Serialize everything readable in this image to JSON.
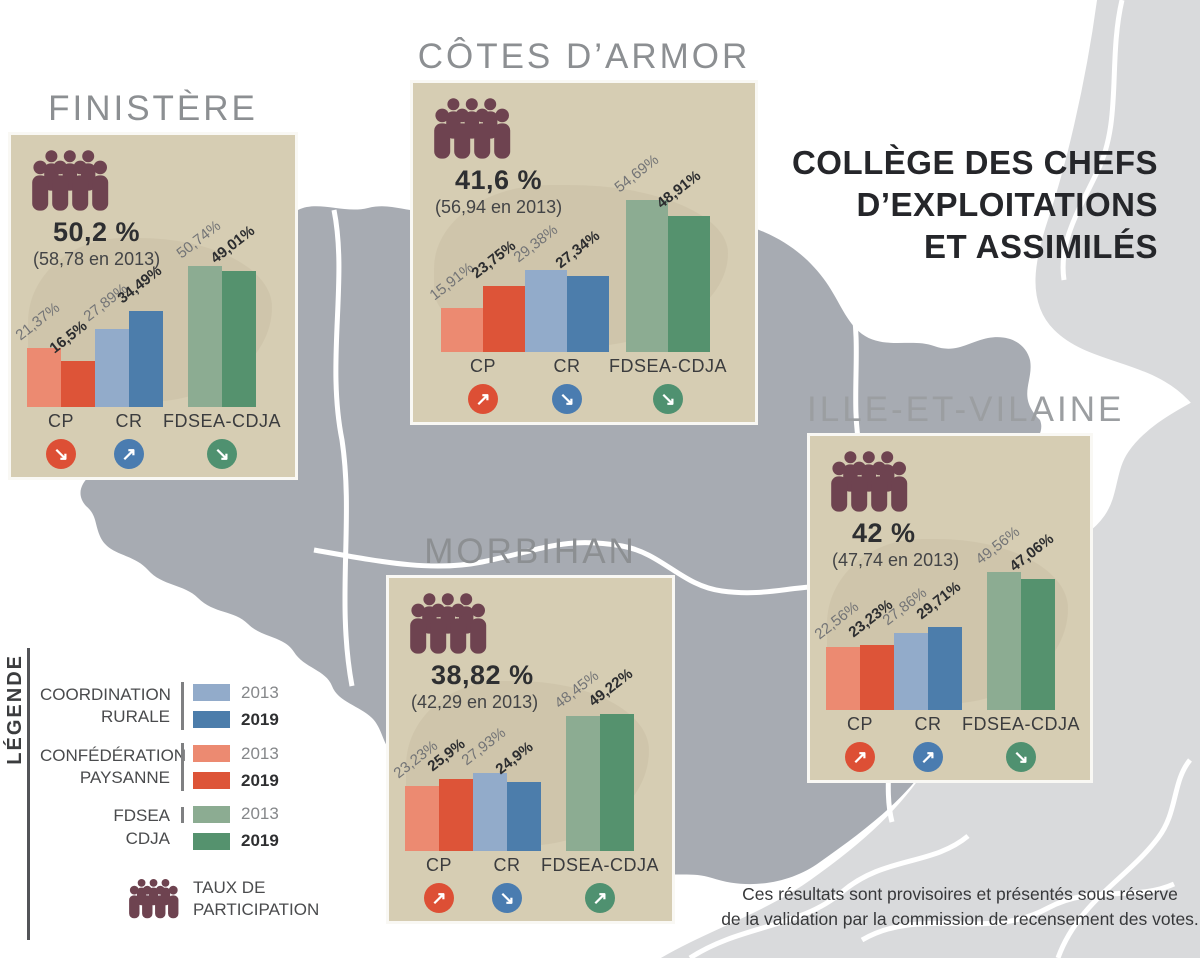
{
  "header": {
    "title_lines": [
      "COLLÈGE DES CHEFS",
      "D’EXPLOITATIONS",
      "ET ASSIMILÉS"
    ]
  },
  "footer": {
    "lines": [
      "Ces résultats sont provisoires et présentés sous réserve",
      "de la validation par la commission de recensement des votes."
    ]
  },
  "icons": {
    "trend_up": "↗",
    "trend_down": "↘",
    "participation": "people-group-icon"
  },
  "colors": {
    "sea": "#ffffff",
    "brittany": "#a7abb2",
    "neighbor_region": "#d9dadc",
    "panel": "#d6cdb3",
    "people_icon": "#6e4350",
    "cp_2013": "#ec8a71",
    "cp_2019": "#dd5438",
    "cr_2013": "#92abca",
    "cr_2019": "#4c7dab",
    "fdsea_2013": "#8cac92",
    "fdsea_2019": "#55926e",
    "trend_cp": "#dd4f35",
    "trend_cr": "#4a7cb0",
    "trend_fdsea": "#4f9170"
  },
  "legend": {
    "heading": "LÉGENDE",
    "entries": [
      {
        "name_lines": [
          "COORDINATION",
          "RURALE"
        ],
        "years": [
          {
            "label": "2013",
            "color": "#92abca"
          },
          {
            "label": "2019",
            "color": "#4c7dab"
          }
        ]
      },
      {
        "name_lines": [
          "CONFÉDÉRATION",
          "PAYSANNE"
        ],
        "years": [
          {
            "label": "2013",
            "color": "#ec8a71"
          },
          {
            "label": "2019",
            "color": "#dd5438"
          }
        ]
      },
      {
        "name_lines": [
          "FDSEA",
          "CDJA"
        ],
        "years": [
          {
            "label": "2013",
            "color": "#8cac92"
          },
          {
            "label": "2019",
            "color": "#55926e"
          }
        ]
      }
    ],
    "participation": {
      "lines": [
        "TAUX DE",
        "PARTICIPATION"
      ]
    }
  },
  "departments": [
    {
      "title": "FINISTÈRE",
      "participation": {
        "rate": "50,2 %",
        "previous": "(58,78 en 2013)"
      },
      "groups": [
        {
          "label": "CP",
          "trend": "down",
          "y2013": {
            "label": "21,37%",
            "value": 21.37
          },
          "y2019": {
            "label": "16,5%",
            "value": 16.5
          }
        },
        {
          "label": "CR",
          "trend": "up",
          "y2013": {
            "label": "27,89%",
            "value": 27.89
          },
          "y2019": {
            "label": "34,49%",
            "value": 34.49
          }
        },
        {
          "label": "FDSEA-CDJA",
          "trend": "down",
          "y2013": {
            "label": "50,74%",
            "value": 50.74
          },
          "y2019": {
            "label": "49,01%",
            "value": 49.01
          }
        }
      ]
    },
    {
      "title": "CÔTES D’ARMOR",
      "participation": {
        "rate": "41,6 %",
        "previous": "(56,94 en 2013)"
      },
      "groups": [
        {
          "label": "CP",
          "trend": "up",
          "y2013": {
            "label": "15,91%",
            "value": 15.91
          },
          "y2019": {
            "label": "23,75%",
            "value": 23.75
          }
        },
        {
          "label": "CR",
          "trend": "down",
          "y2013": {
            "label": "29,38%",
            "value": 29.38
          },
          "y2019": {
            "label": "27,34%",
            "value": 27.34
          }
        },
        {
          "label": "FDSEA-CDJA",
          "trend": "down",
          "y2013": {
            "label": "54,69%",
            "value": 54.69
          },
          "y2019": {
            "label": "48,91%",
            "value": 48.91
          }
        }
      ]
    },
    {
      "title": "MORBIHAN",
      "participation": {
        "rate": "38,82 %",
        "previous": "(42,29 en 2013)"
      },
      "groups": [
        {
          "label": "CP",
          "trend": "up",
          "y2013": {
            "label": "23,23%",
            "value": 23.23
          },
          "y2019": {
            "label": "25,9%",
            "value": 25.9
          }
        },
        {
          "label": "CR",
          "trend": "down",
          "y2013": {
            "label": "27,93%",
            "value": 27.93
          },
          "y2019": {
            "label": "24,9%",
            "value": 24.9
          }
        },
        {
          "label": "FDSEA-CDJA",
          "trend": "up",
          "y2013": {
            "label": "48,45%",
            "value": 48.45
          },
          "y2019": {
            "label": "49,22%",
            "value": 49.22
          }
        }
      ]
    },
    {
      "title": "ILLE-ET-VILAINE",
      "participation": {
        "rate": "42 %",
        "previous": "(47,74 en 2013)"
      },
      "groups": [
        {
          "label": "CP",
          "trend": "up",
          "y2013": {
            "label": "22,56%",
            "value": 22.56
          },
          "y2019": {
            "label": "23,23%",
            "value": 23.23
          }
        },
        {
          "label": "CR",
          "trend": "up",
          "y2013": {
            "label": "27,86%",
            "value": 27.86
          },
          "y2019": {
            "label": "29,71%",
            "value": 29.71
          }
        },
        {
          "label": "FDSEA-CDJA",
          "trend": "down",
          "y2013": {
            "label": "49,56%",
            "value": 49.56
          },
          "y2019": {
            "label": "47,06%",
            "value": 47.06
          }
        }
      ]
    }
  ],
  "chart_data": [
    {
      "type": "bar",
      "title": "FINISTÈRE",
      "participation_2019": 50.2,
      "participation_2013": 58.78,
      "categories": [
        "CP",
        "CR",
        "FDSEA-CDJA"
      ],
      "series": [
        {
          "name": "2013",
          "values": [
            21.37,
            27.89,
            50.74
          ]
        },
        {
          "name": "2019",
          "values": [
            16.5,
            34.49,
            49.01
          ]
        }
      ],
      "trends": [
        "down",
        "up",
        "down"
      ],
      "ylim": [
        0,
        60
      ],
      "unit": "%"
    },
    {
      "type": "bar",
      "title": "CÔTES D’ARMOR",
      "participation_2019": 41.6,
      "participation_2013": 56.94,
      "categories": [
        "CP",
        "CR",
        "FDSEA-CDJA"
      ],
      "series": [
        {
          "name": "2013",
          "values": [
            15.91,
            29.38,
            54.69
          ]
        },
        {
          "name": "2019",
          "values": [
            23.75,
            27.34,
            48.91
          ]
        }
      ],
      "trends": [
        "up",
        "down",
        "down"
      ],
      "ylim": [
        0,
        60
      ],
      "unit": "%"
    },
    {
      "type": "bar",
      "title": "MORBIHAN",
      "participation_2019": 38.82,
      "participation_2013": 42.29,
      "categories": [
        "CP",
        "CR",
        "FDSEA-CDJA"
      ],
      "series": [
        {
          "name": "2013",
          "values": [
            23.23,
            27.93,
            48.45
          ]
        },
        {
          "name": "2019",
          "values": [
            25.9,
            24.9,
            49.22
          ]
        }
      ],
      "trends": [
        "up",
        "down",
        "up"
      ],
      "ylim": [
        0,
        60
      ],
      "unit": "%"
    },
    {
      "type": "bar",
      "title": "ILLE-ET-VILAINE",
      "participation_2019": 42,
      "participation_2013": 47.74,
      "categories": [
        "CP",
        "CR",
        "FDSEA-CDJA"
      ],
      "series": [
        {
          "name": "2013",
          "values": [
            22.56,
            27.86,
            49.56
          ]
        },
        {
          "name": "2019",
          "values": [
            23.23,
            29.71,
            47.06
          ]
        }
      ],
      "trends": [
        "up",
        "up",
        "down"
      ],
      "ylim": [
        0,
        60
      ],
      "unit": "%"
    }
  ]
}
